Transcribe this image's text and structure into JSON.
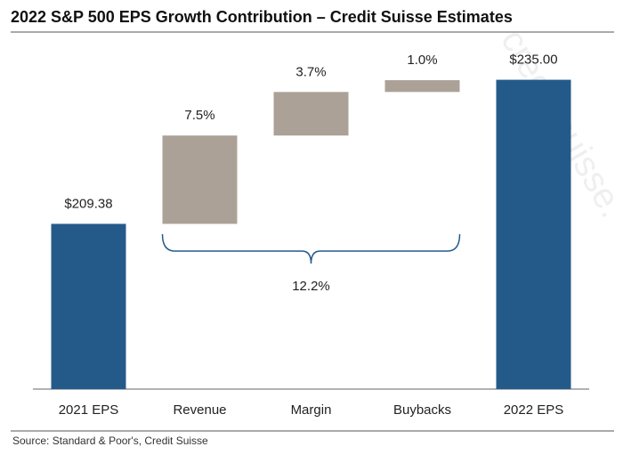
{
  "chart_data": {
    "type": "waterfall",
    "title": "2022 S&P 500 EPS Growth Contribution – Credit Suisse Estimates",
    "categories": [
      "2021 EPS",
      "Revenue",
      "Margin",
      "Buybacks",
      "2022 EPS"
    ],
    "measures": [
      "absolute",
      "percent",
      "percent",
      "percent",
      "total"
    ],
    "values": [
      209.38,
      7.5,
      3.7,
      1.0,
      235.0
    ],
    "value_labels": [
      "$209.38",
      "7.5%",
      "3.7%",
      "1.0%",
      "$235.00"
    ],
    "colors": [
      "#245a8a",
      "#aca197",
      "#aca197",
      "#aca197",
      "#245a8a"
    ],
    "ylim": [
      180,
      240
    ],
    "annotation": "12.2%",
    "watermark": "credit-suisse.",
    "source": "Source: Standard & Poor's, Credit Suisse"
  }
}
